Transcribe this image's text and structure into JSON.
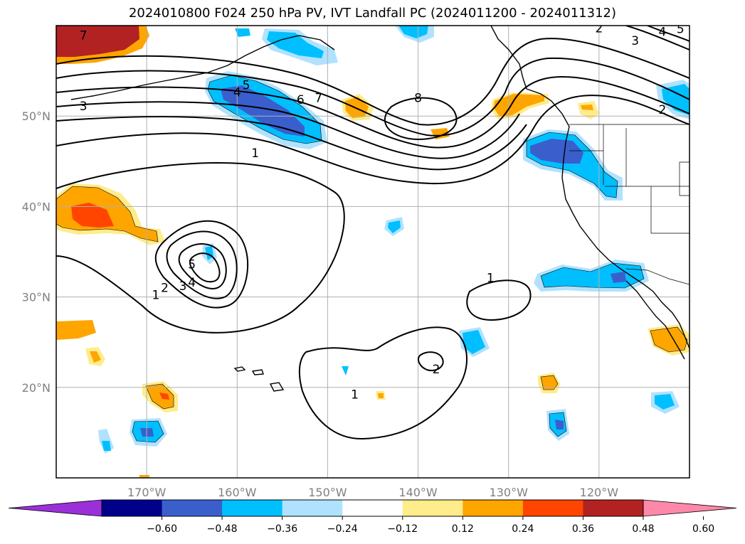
{
  "title": "2024010800 F024 250 hPa PV, IVT Landfall PC (2024011200 - 2024011312)",
  "map": {
    "lon_range": [
      -180,
      -110
    ],
    "lat_range": [
      10,
      60
    ],
    "lon_ticks": [
      {
        "lon": -170,
        "label": "170°W"
      },
      {
        "lon": -160,
        "label": "160°W"
      },
      {
        "lon": -150,
        "label": "150°W"
      },
      {
        "lon": -140,
        "label": "140°W"
      },
      {
        "lon": -130,
        "label": "130°W"
      },
      {
        "lon": -120,
        "label": "120°W"
      }
    ],
    "lat_ticks": [
      {
        "lat": 20,
        "label": "20°N"
      },
      {
        "lat": 30,
        "label": "30°N"
      },
      {
        "lat": 40,
        "label": "40°N"
      },
      {
        "lat": 50,
        "label": "50°N"
      }
    ],
    "gridlines": true,
    "tick_label_color": "#808080"
  },
  "colorbar": {
    "ticks": [
      "−0.60",
      "−0.48",
      "−0.36",
      "−0.24",
      "−0.12",
      "0.12",
      "0.24",
      "0.36",
      "0.48",
      "0.60"
    ],
    "colors": [
      "#9b30d9",
      "#00008b",
      "#3a5fcd",
      "#00bfff",
      "#b0e2ff",
      "#ffffff",
      "#ffec8b",
      "#ffa500",
      "#ff4500",
      "#b22222",
      "#ff88aa"
    ],
    "extend": "both"
  },
  "contour_labels": [
    {
      "text": "7",
      "lon": -177,
      "lat": 58.7
    },
    {
      "text": "3",
      "lon": -177,
      "lat": 50.9
    },
    {
      "text": "5",
      "lon": -159,
      "lat": 53.2
    },
    {
      "text": "4",
      "lon": -160,
      "lat": 52.4
    },
    {
      "text": "6",
      "lon": -153,
      "lat": 51.6
    },
    {
      "text": "7",
      "lon": -151,
      "lat": 51.8
    },
    {
      "text": "8",
      "lon": -140,
      "lat": 51.8
    },
    {
      "text": "2",
      "lon": -120,
      "lat": 59.5
    },
    {
      "text": "4",
      "lon": -113,
      "lat": 59.1
    },
    {
      "text": "5",
      "lon": -111,
      "lat": 59.4
    },
    {
      "text": "3",
      "lon": -116,
      "lat": 58.1
    },
    {
      "text": "2",
      "lon": -113,
      "lat": 50.5
    },
    {
      "text": "1",
      "lon": -158,
      "lat": 45.7
    },
    {
      "text": "5",
      "lon": -165,
      "lat": 33.4
    },
    {
      "text": "4",
      "lon": -165,
      "lat": 31.4
    },
    {
      "text": "3",
      "lon": -166,
      "lat": 31.0
    },
    {
      "text": "2",
      "lon": -168,
      "lat": 30.8
    },
    {
      "text": "1",
      "lon": -169,
      "lat": 30.0
    },
    {
      "text": "1",
      "lon": -132,
      "lat": 31.9
    },
    {
      "text": "2",
      "lon": -138,
      "lat": 21.8
    },
    {
      "text": "1",
      "lon": -147,
      "lat": 19.0
    }
  ]
}
